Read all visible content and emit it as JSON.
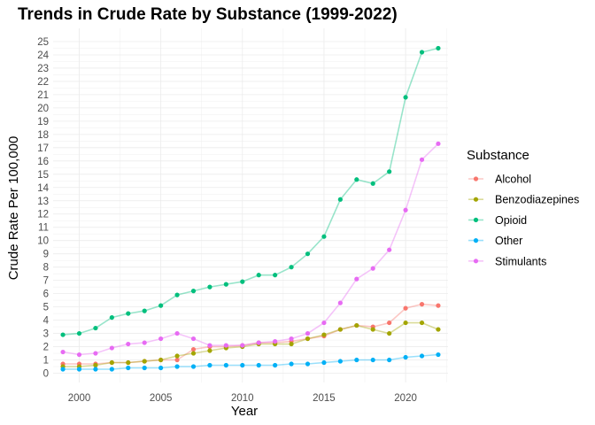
{
  "chart_data": {
    "type": "line",
    "title": "Trends in Crude Rate by Substance (1999-2022)",
    "xlabel": "Year",
    "ylabel": "Crude Rate Per 100,000",
    "xlim": [
      1998.4,
      2022.6
    ],
    "ylim": [
      -0.7,
      26.0
    ],
    "x_ticks": [
      2000,
      2005,
      2010,
      2015,
      2020
    ],
    "y_ticks": [
      0,
      1,
      2,
      3,
      4,
      5,
      6,
      7,
      8,
      9,
      10,
      11,
      12,
      13,
      14,
      15,
      16,
      17,
      18,
      19,
      20,
      21,
      22,
      23,
      24,
      25
    ],
    "grid": true,
    "legend_title": "Substance",
    "legend_position": "right",
    "x": [
      1999,
      2000,
      2001,
      2002,
      2003,
      2004,
      2005,
      2006,
      2007,
      2008,
      2009,
      2010,
      2011,
      2012,
      2013,
      2014,
      2015,
      2016,
      2017,
      2018,
      2019,
      2020,
      2021,
      2022
    ],
    "series": [
      {
        "name": "Alcohol",
        "color": "#F8766D",
        "values": [
          0.7,
          0.7,
          0.7,
          0.8,
          0.8,
          0.9,
          1.0,
          1.0,
          1.8,
          2.0,
          2.0,
          2.1,
          2.3,
          2.3,
          2.4,
          2.6,
          2.8,
          3.3,
          3.6,
          3.5,
          3.8,
          4.9,
          5.2,
          5.1
        ]
      },
      {
        "name": "Benzodiazepines",
        "color": "#A3A500",
        "values": [
          0.5,
          0.5,
          0.6,
          0.8,
          0.8,
          0.9,
          1.0,
          1.3,
          1.5,
          1.7,
          1.9,
          2.0,
          2.2,
          2.2,
          2.2,
          2.6,
          2.9,
          3.3,
          3.6,
          3.3,
          3.0,
          3.8,
          3.8,
          3.3
        ]
      },
      {
        "name": "Opioid",
        "color": "#00BF7D",
        "values": [
          2.9,
          3.0,
          3.4,
          4.2,
          4.5,
          4.7,
          5.1,
          5.9,
          6.2,
          6.5,
          6.7,
          6.9,
          7.4,
          7.4,
          8.0,
          9.0,
          10.3,
          13.1,
          14.6,
          14.3,
          15.2,
          20.8,
          24.2,
          24.5
        ]
      },
      {
        "name": "Other",
        "color": "#00B0F6",
        "values": [
          0.3,
          0.3,
          0.3,
          0.3,
          0.4,
          0.4,
          0.4,
          0.5,
          0.5,
          0.6,
          0.6,
          0.6,
          0.6,
          0.6,
          0.7,
          0.7,
          0.8,
          0.9,
          1.0,
          1.0,
          1.0,
          1.2,
          1.3,
          1.4
        ]
      },
      {
        "name": "Stimulants",
        "color": "#E76BF3",
        "values": [
          1.6,
          1.4,
          1.5,
          1.9,
          2.2,
          2.3,
          2.6,
          3.0,
          2.6,
          2.1,
          2.1,
          2.1,
          2.3,
          2.4,
          2.6,
          3.0,
          3.8,
          5.3,
          7.1,
          7.9,
          9.3,
          12.3,
          16.1,
          17.3
        ]
      }
    ]
  }
}
